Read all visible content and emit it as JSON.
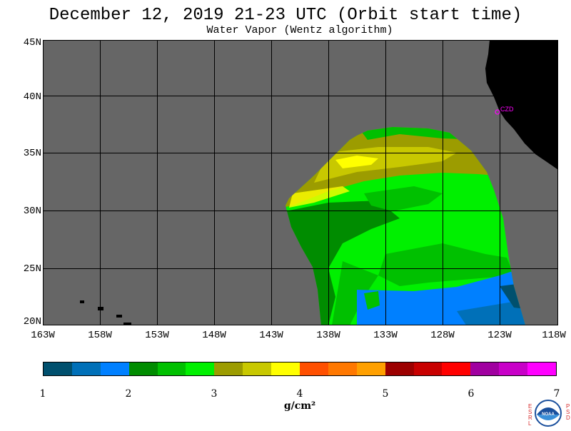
{
  "title": "December 12, 2019  21-23 UTC  (Orbit start time)",
  "subtitle": "Water Vapor (Wentz algorithm)",
  "map": {
    "lat_labels": [
      "45N",
      "40N",
      "35N",
      "30N",
      "25N",
      "20N"
    ],
    "lat_values": [
      45,
      40,
      35,
      30,
      25,
      20
    ],
    "lon_labels": [
      "163W",
      "158W",
      "153W",
      "148W",
      "143W",
      "138W",
      "133W",
      "128W",
      "123W",
      "118W"
    ],
    "lon_values": [
      -163,
      -158,
      -153,
      -148,
      -143,
      -138,
      -133,
      -128,
      -123,
      -118
    ],
    "lat_range": [
      20,
      45
    ],
    "lon_range": [
      -163,
      -118
    ],
    "station_label": "CZD",
    "colors": {
      "ocean": "#666666",
      "land": "#000000",
      "grid": "#000000",
      "station": "#ff00ff"
    }
  },
  "colorbar": {
    "tick_labels": [
      "1",
      "2",
      "3",
      "4",
      "5",
      "6",
      "7"
    ],
    "range": [
      1,
      7
    ],
    "units": "g/cm²",
    "colors": [
      "#00506e",
      "#0070b8",
      "#0080ff",
      "#008c00",
      "#00c000",
      "#00f000",
      "#9c9c00",
      "#c8c800",
      "#ffff00",
      "#ff5000",
      "#ff7800",
      "#ffa000",
      "#9c0000",
      "#c80000",
      "#ff0000",
      "#a000a0",
      "#c800c8",
      "#ff00ff"
    ]
  },
  "logo": {
    "left_text": "ESRL",
    "right_text": "PSD",
    "center_text": "NOAA"
  }
}
